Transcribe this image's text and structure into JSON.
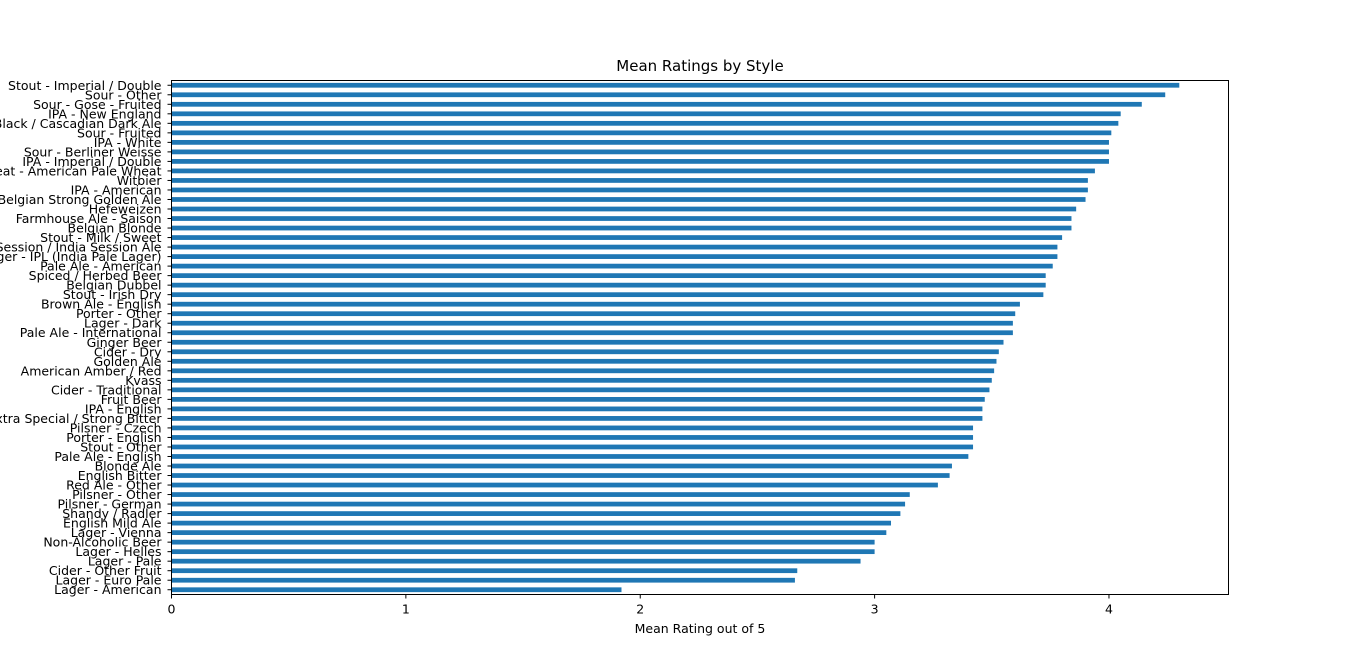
{
  "chart_data": {
    "type": "bar",
    "orientation": "horizontal",
    "title": "Mean Ratings by Style",
    "xlabel": "Mean Rating out of 5",
    "ylabel": "",
    "xlim": [
      0,
      4.51
    ],
    "xticks": [
      0,
      1,
      2,
      3,
      4
    ],
    "grid": false,
    "legend": "none",
    "bar_color": "#1f77b4",
    "categories": [
      "Stout - Imperial / Double",
      "Sour - Other",
      "Sour - Gose - Fruited",
      "IPA - New England",
      "Black / Cascadian Dark Ale",
      "Sour - Fruited",
      "IPA - White",
      "Sour - Berliner Weisse",
      "IPA - Imperial / Double",
      "Wheat - American Pale Wheat",
      "Witbier",
      "IPA - American",
      "Belgian Strong Golden Ale",
      "Hefeweizen",
      "Farmhouse Ale - Saison",
      "Belgian Blonde",
      "Stout - Milk / Sweet",
      "Session / India Session Ale",
      "Lager - IPL (India Pale Lager)",
      "Pale Ale - American",
      "Spiced / Herbed Beer",
      "Belgian Dubbel",
      "Stout - Irish Dry",
      "Brown Ale - English",
      "Porter - Other",
      "Lager - Dark",
      "Pale Ale - International",
      "Ginger Beer",
      "Cider - Dry",
      "Golden Ale",
      "American Amber / Red",
      "Kvass",
      "Cider - Traditional",
      "Fruit Beer",
      "IPA - English",
      "Extra Special / Strong Bitter",
      "Pilsner - Czech",
      "Porter - English",
      "Stout - Other",
      "Pale Ale - English",
      "Blonde Ale",
      "English Bitter",
      "Red Ale - Other",
      "Pilsner - Other",
      "Pilsner - German",
      "Shandy / Radler",
      "English Mild Ale",
      "Lager - Vienna",
      "Non-Alcoholic Beer",
      "Lager - Helles",
      "Lager - Pale",
      "Cider - Other Fruit",
      "Lager - Euro Pale",
      "Lager - American"
    ],
    "values": [
      4.3,
      4.24,
      4.14,
      4.05,
      4.04,
      4.01,
      4.0,
      4.0,
      4.0,
      3.94,
      3.91,
      3.91,
      3.9,
      3.86,
      3.84,
      3.84,
      3.8,
      3.78,
      3.78,
      3.76,
      3.73,
      3.73,
      3.72,
      3.62,
      3.6,
      3.59,
      3.59,
      3.55,
      3.53,
      3.52,
      3.51,
      3.5,
      3.49,
      3.47,
      3.46,
      3.46,
      3.42,
      3.42,
      3.42,
      3.4,
      3.33,
      3.32,
      3.27,
      3.15,
      3.13,
      3.11,
      3.07,
      3.05,
      3.0,
      3.0,
      2.94,
      2.67,
      2.66,
      1.92
    ]
  }
}
